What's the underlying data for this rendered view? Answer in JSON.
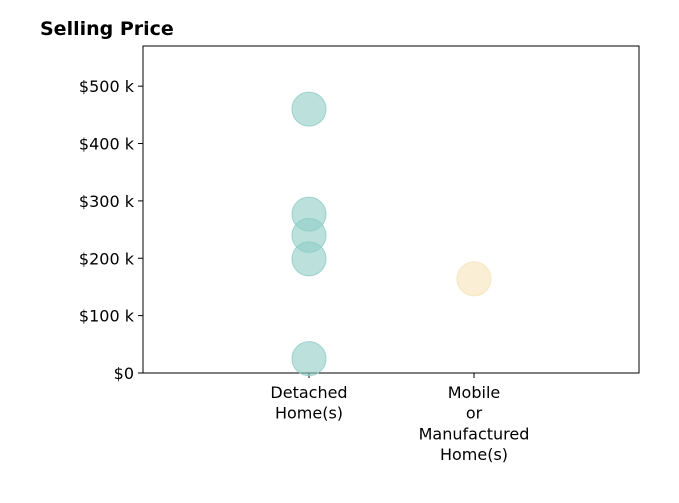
{
  "chart_data": {
    "type": "scatter",
    "title": "Selling Price",
    "xlabel": "",
    "ylabel": "",
    "categories": [
      "Detached Home(s)",
      "Mobile or Manufactured Home(s)"
    ],
    "category_label_lines": [
      [
        "Detached",
        "Home(s)"
      ],
      [
        "Mobile",
        "or",
        "Manufactured",
        "Home(s)"
      ]
    ],
    "ylim": [
      0,
      570000
    ],
    "yticks": [
      0,
      100000,
      200000,
      300000,
      400000,
      500000
    ],
    "ytick_labels": [
      "$0",
      "$100 k",
      "$200 k",
      "$300 k",
      "$400 k",
      "$500 k"
    ],
    "grid": false,
    "series": [
      {
        "category": "Detached Home(s)",
        "color": "#8fcdc6",
        "values": [
          460000,
          277000,
          240000,
          199000,
          25000
        ]
      },
      {
        "category": "Mobile or Manufactured Home(s)",
        "color": "#f6e2b7",
        "values": [
          164000
        ]
      }
    ]
  }
}
